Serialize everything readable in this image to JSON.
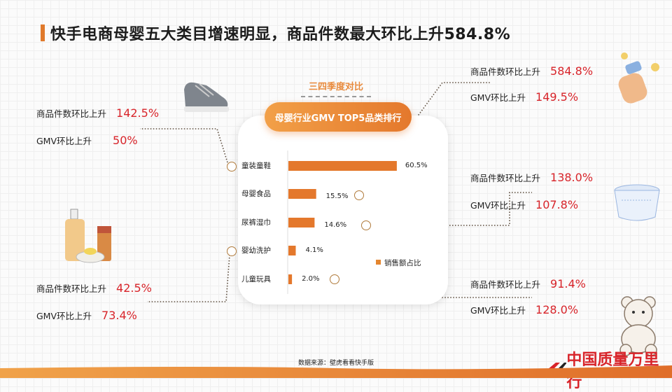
{
  "title": "快手电商母婴五大类目增速明显，商品件数最大环比上升584.8%",
  "subtitle": "三四季度对比",
  "chart_title": "母婴行业GMV TOP5品类排行",
  "source": "数据来源：壁虎看看快手版",
  "logo_text": "中国质量万里行",
  "accent": "#e4782c",
  "highlight": "#d8242a",
  "chart_data": {
    "type": "bar",
    "orientation": "horizontal",
    "title": "母婴行业GMV TOP5品类排行",
    "categories": [
      "童装童鞋",
      "母婴食品",
      "尿裤湿巾",
      "婴幼洗护",
      "儿童玩具"
    ],
    "series": [
      {
        "name": "销售额占比",
        "values": [
          60.5,
          15.5,
          14.6,
          4.1,
          2.0
        ]
      }
    ],
    "value_labels": [
      "60.5%",
      "15.5%",
      "14.6%",
      "4.1%",
      "2.0%"
    ],
    "legend": "bottom-right",
    "grid": false
  },
  "callouts": [
    {
      "category": "童装童鞋",
      "items": [
        {
          "label": "商品件数环比上升",
          "value": "142.5%"
        },
        {
          "label": "GMV环比上升",
          "value": "50%"
        }
      ],
      "icon": "shoe-icon"
    },
    {
      "category": "婴幼洗护",
      "items": [
        {
          "label": "商品件数环比上升",
          "value": "42.5%"
        },
        {
          "label": "GMV环比上升",
          "value": "73.4%"
        }
      ],
      "icon": "bottles-icon"
    },
    {
      "category": "母婴食品",
      "items": [
        {
          "label": "商品件数环比上升",
          "value": "584.8%"
        },
        {
          "label": "GMV环比上升",
          "value": "149.5%"
        }
      ],
      "icon": "baby-bottle-icon"
    },
    {
      "category": "尿裤湿巾",
      "items": [
        {
          "label": "商品件数环比上升",
          "value": "138.0%"
        },
        {
          "label": "GMV环比上升",
          "value": "107.8%"
        }
      ],
      "icon": "diaper-icon"
    },
    {
      "category": "儿童玩具",
      "items": [
        {
          "label": "商品件数环比上升",
          "value": "91.4%"
        },
        {
          "label": "GMV环比上升",
          "value": "128.0%"
        }
      ],
      "icon": "teddy-bear-icon"
    }
  ]
}
